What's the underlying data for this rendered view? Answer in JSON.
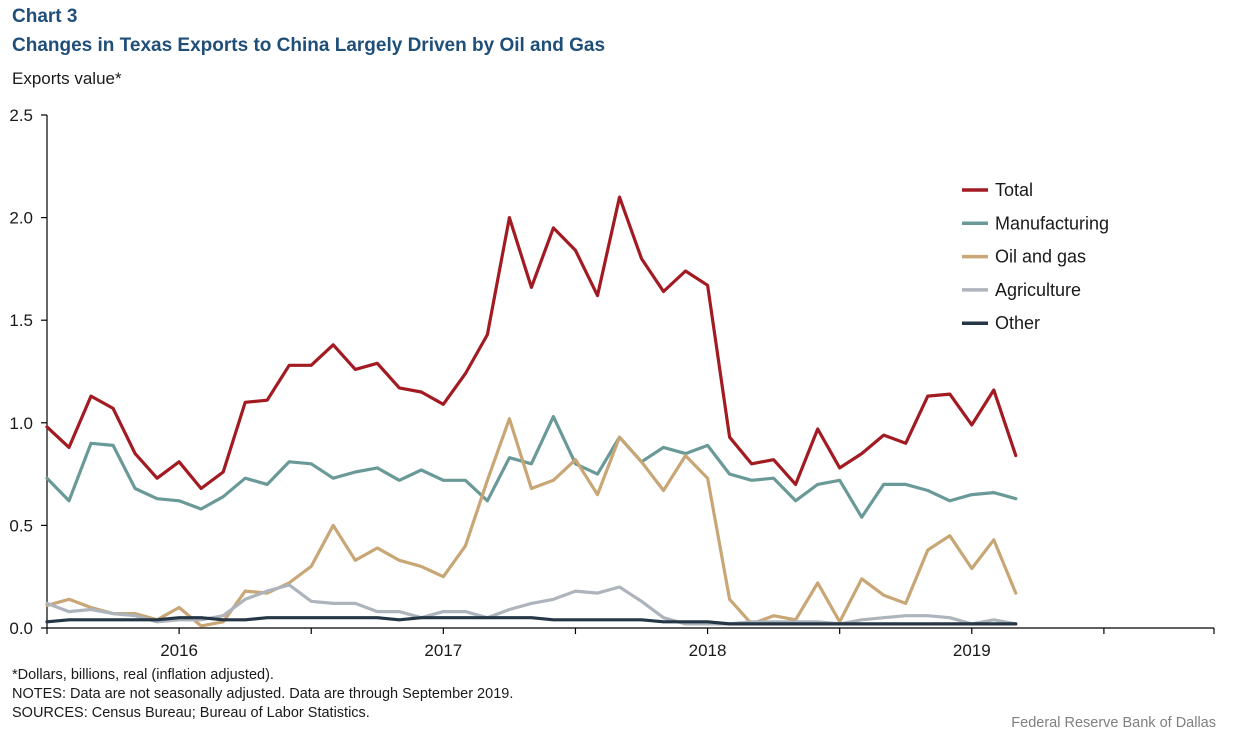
{
  "header": {
    "chart_label": "Chart 3",
    "title": "Changes in Texas Exports to China Largely Driven by Oil and Gas",
    "y_title": "Exports value*"
  },
  "footer": {
    "note1": "*Dollars, billions, real (inflation adjusted).",
    "note2": "NOTES: Data are not seasonally adjusted. Data are through September 2019.",
    "note3": "SOURCES: Census Bureau; Bureau of Labor Statistics.",
    "brand": "Federal Reserve  Bank of Dallas"
  },
  "chart_data": {
    "type": "line",
    "title": "Changes in Texas Exports to China Largely Driven by Oil and Gas",
    "ylabel": "Exports value*",
    "ylim": [
      0,
      2.5
    ],
    "y_ticks": [
      0,
      0.5,
      1.0,
      1.5,
      2.0,
      2.5
    ],
    "y_tick_labels": [
      "0.0",
      "0.5",
      "1.0",
      "1.5",
      "2.0",
      "2.5"
    ],
    "x_start": "2015-07",
    "x_end": "2019-09",
    "x_range": [
      "2015-07",
      "2019-12"
    ],
    "x_tick_dates": [
      "2015-07",
      "2016-01",
      "2016-07",
      "2017-01",
      "2017-07",
      "2018-01",
      "2018-07",
      "2019-01",
      "2019-07",
      "2019-12"
    ],
    "x_year_labels": [
      {
        "label": "2016",
        "date": "2016-01"
      },
      {
        "label": "2017",
        "date": "2017-01"
      },
      {
        "label": "2018",
        "date": "2018-01"
      },
      {
        "label": "2019",
        "date": "2019-01"
      }
    ],
    "grid": false,
    "legend_position": "top-right",
    "series": [
      {
        "name": "Total",
        "color": "#a31b22",
        "values": [
          0.98,
          0.88,
          1.13,
          1.07,
          0.85,
          0.73,
          0.81,
          0.68,
          0.76,
          1.1,
          1.11,
          1.28,
          1.28,
          1.38,
          1.26,
          1.29,
          1.17,
          1.15,
          1.09,
          1.24,
          1.43,
          2.0,
          1.66,
          1.95,
          1.84,
          1.62,
          2.1,
          1.8,
          1.64,
          1.74,
          1.67,
          0.93,
          0.8,
          0.82,
          0.7,
          0.97,
          0.78,
          0.85,
          0.94,
          0.9,
          1.13,
          1.14,
          0.99,
          1.16,
          0.84
        ]
      },
      {
        "name": "Manufacturing",
        "color": "#6a9a98",
        "values": [
          0.73,
          0.62,
          0.9,
          0.89,
          0.68,
          0.63,
          0.62,
          0.58,
          0.64,
          0.73,
          0.7,
          0.81,
          0.8,
          0.73,
          0.76,
          0.78,
          0.72,
          0.77,
          0.72,
          0.72,
          0.62,
          0.83,
          0.8,
          1.03,
          0.8,
          0.75,
          0.93,
          0.81,
          0.88,
          0.85,
          0.89,
          0.75,
          0.72,
          0.73,
          0.62,
          0.7,
          0.72,
          0.54,
          0.7,
          0.7,
          0.67,
          0.62,
          0.65,
          0.66,
          0.63
        ]
      },
      {
        "name": "Oil and gas",
        "color": "#c8a675",
        "values": [
          0.11,
          0.14,
          0.1,
          0.07,
          0.07,
          0.04,
          0.1,
          0.01,
          0.03,
          0.18,
          0.17,
          0.22,
          0.3,
          0.5,
          0.33,
          0.39,
          0.33,
          0.3,
          0.25,
          0.4,
          0.72,
          1.02,
          0.68,
          0.72,
          0.82,
          0.65,
          0.93,
          0.81,
          0.67,
          0.84,
          0.73,
          0.14,
          0.02,
          0.06,
          0.04,
          0.22,
          0.03,
          0.24,
          0.16,
          0.12,
          0.38,
          0.45,
          0.29,
          0.43,
          0.17
        ]
      },
      {
        "name": "Agriculture",
        "color": "#aeb4bc",
        "values": [
          0.12,
          0.08,
          0.09,
          0.07,
          0.06,
          0.03,
          0.04,
          0.04,
          0.06,
          0.14,
          0.18,
          0.21,
          0.13,
          0.12,
          0.12,
          0.08,
          0.08,
          0.05,
          0.08,
          0.08,
          0.05,
          0.09,
          0.12,
          0.14,
          0.18,
          0.17,
          0.2,
          0.13,
          0.05,
          0.02,
          0.02,
          0.02,
          0.03,
          0.03,
          0.03,
          0.03,
          0.02,
          0.04,
          0.05,
          0.06,
          0.06,
          0.05,
          0.02,
          0.04,
          0.02
        ]
      },
      {
        "name": "Other",
        "color": "#253746",
        "values": [
          0.03,
          0.04,
          0.04,
          0.04,
          0.04,
          0.04,
          0.05,
          0.05,
          0.04,
          0.04,
          0.05,
          0.05,
          0.05,
          0.05,
          0.05,
          0.05,
          0.04,
          0.05,
          0.05,
          0.05,
          0.05,
          0.05,
          0.05,
          0.04,
          0.04,
          0.04,
          0.04,
          0.04,
          0.03,
          0.03,
          0.03,
          0.02,
          0.02,
          0.02,
          0.02,
          0.02,
          0.02,
          0.02,
          0.02,
          0.02,
          0.02,
          0.02,
          0.02,
          0.02,
          0.02
        ]
      }
    ]
  }
}
